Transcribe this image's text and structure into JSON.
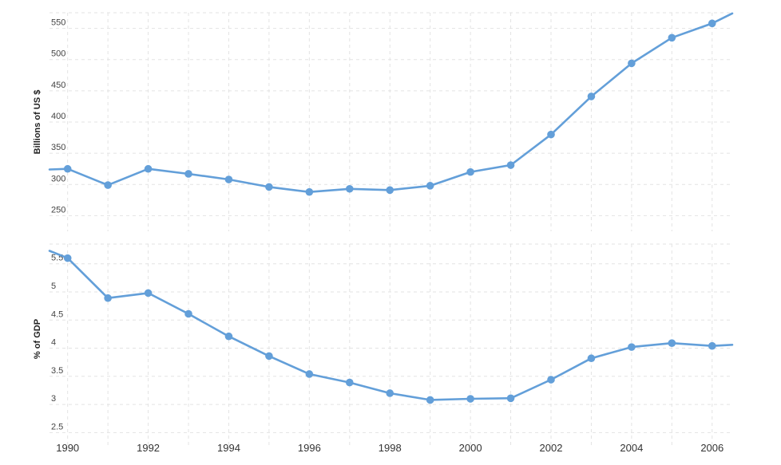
{
  "chart_data": [
    {
      "type": "line",
      "ylabel": "Billions of US $",
      "yticks": [
        250,
        300,
        350,
        400,
        450,
        500,
        550
      ],
      "ylim": [
        225,
        575
      ],
      "xlim": [
        1989.55,
        2006.5
      ],
      "grid": true,
      "color": "#639fd9",
      "series": [
        {
          "x": [
            1989.55,
            1990,
            1991,
            1992,
            1993,
            1994,
            1995,
            1996,
            1997,
            1998,
            1999,
            2000,
            2001,
            2002,
            2003,
            2004,
            2005,
            2006,
            2006.5
          ],
          "values": [
            324,
            325,
            299,
            325,
            317,
            308,
            296,
            288,
            293,
            291,
            298,
            320,
            331,
            380,
            441,
            494,
            535,
            558,
            574
          ],
          "markers": [
            false,
            true,
            true,
            true,
            true,
            true,
            true,
            true,
            true,
            true,
            true,
            true,
            true,
            true,
            true,
            true,
            true,
            true,
            false
          ]
        }
      ]
    },
    {
      "type": "line",
      "ylabel": "% of GDP",
      "yticks": [
        2.5,
        3.0,
        3.5,
        4.0,
        4.5,
        5.0,
        5.5
      ],
      "ylim": [
        2.25,
        5.85
      ],
      "xlim": [
        1989.55,
        2006.5
      ],
      "xticks": [
        1990,
        1992,
        1994,
        1996,
        1998,
        2000,
        2002,
        2004,
        2006
      ],
      "grid": true,
      "color": "#639fd9",
      "series": [
        {
          "x": [
            1989.55,
            1990,
            1991,
            1992,
            1993,
            1994,
            1995,
            1996,
            1997,
            1998,
            1999,
            2000,
            2001,
            2002,
            2003,
            2004,
            2005,
            2006,
            2006.5
          ],
          "values": [
            5.73,
            5.6,
            4.89,
            4.98,
            4.61,
            4.21,
            3.86,
            3.54,
            3.39,
            3.2,
            3.08,
            3.1,
            3.11,
            3.44,
            3.82,
            4.02,
            4.09,
            4.04,
            4.06
          ],
          "markers": [
            false,
            true,
            true,
            true,
            true,
            true,
            true,
            true,
            true,
            true,
            true,
            true,
            true,
            true,
            true,
            true,
            true,
            true,
            false
          ]
        }
      ]
    }
  ]
}
